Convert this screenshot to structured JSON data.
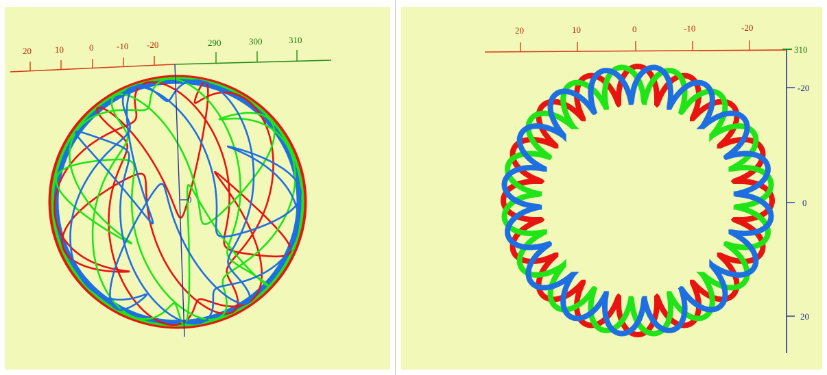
{
  "left_view": {
    "red_axis_labels": [
      "20",
      "10",
      "0",
      "-10",
      "-20"
    ],
    "green_axis_labels": [
      "290",
      "300",
      "310"
    ],
    "center_label": "0"
  },
  "right_view": {
    "top_axis_labels": [
      "20",
      "10",
      "0",
      "-10",
      "-20"
    ],
    "corner_label": "310",
    "right_axis_labels": [
      "-20",
      "0",
      "20"
    ]
  },
  "colors": {
    "background": "#f1f8b8",
    "red": "#e8140f",
    "green": "#20e418",
    "blue": "#1e6fe0",
    "axis_red": "#d83a14",
    "axis_green": "#2a8a18",
    "axis_blue": "#24349a",
    "label_red": "#b42808",
    "label_green": "#1c7a10",
    "label_blue": "#1c2c8a"
  }
}
